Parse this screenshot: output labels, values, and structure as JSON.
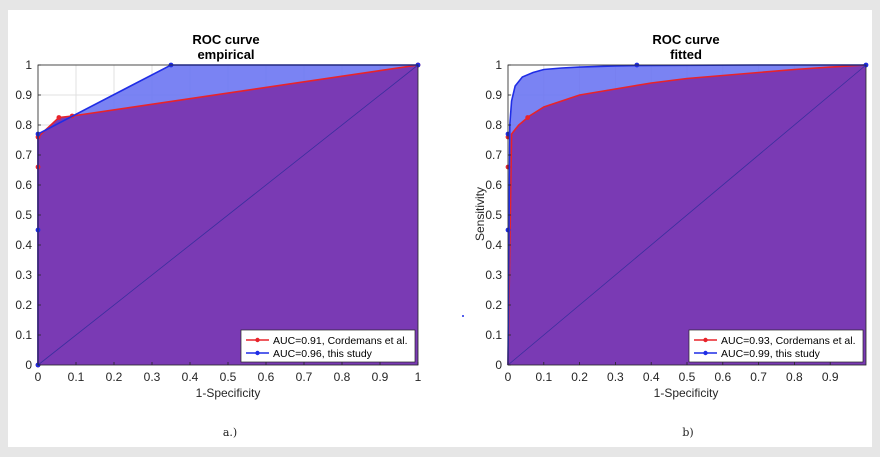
{
  "chart_data": [
    {
      "type": "area",
      "id": "a",
      "title": "ROC curve",
      "subtitle": "empirical",
      "xlabel": "1-Specificity",
      "ylabel": "",
      "caption": "a.)",
      "xlim": [
        0,
        1
      ],
      "ylim": [
        0,
        1
      ],
      "xticks": [
        "0",
        "0.1",
        "0.2",
        "0.3",
        "0.4",
        "0.5",
        "0.6",
        "0.7",
        "0.8",
        "0.9",
        "1"
      ],
      "yticks": [
        "0",
        "0.1",
        "0.2",
        "0.3",
        "0.4",
        "0.5",
        "0.6",
        "0.7",
        "0.8",
        "0.9",
        "1"
      ],
      "grid": true,
      "legend_position": "bottom-right",
      "colors": {
        "fill": "#6b76f2",
        "overlap": "#7a3ab4",
        "red": "#e8232a",
        "blue": "#1f2de6",
        "diag": "#3b2f9e"
      },
      "series": [
        {
          "name": "AUC=0.91, Cordemans et al.",
          "color": "#e8232a",
          "x": [
            0,
            0,
            0,
            0.055,
            0.09,
            1
          ],
          "y": [
            0,
            0.66,
            0.76,
            0.825,
            0.83,
            1
          ]
        },
        {
          "name": "AUC=0.96, this study",
          "color": "#1f2de6",
          "x": [
            0,
            0,
            0,
            0.35,
            1
          ],
          "y": [
            0,
            0.45,
            0.77,
            1,
            1
          ]
        }
      ]
    },
    {
      "type": "area",
      "id": "b",
      "title": "ROC curve",
      "subtitle": "fitted",
      "xlabel": "1-Specificity",
      "ylabel": "Sensitivity",
      "caption": "b)",
      "xlim": [
        0,
        1
      ],
      "ylim": [
        0,
        1
      ],
      "xticks": [
        "0",
        "0.1",
        "0.2",
        "0.3",
        "0.4",
        "0.5",
        "0.6",
        "0.7",
        "0.8",
        "0.9"
      ],
      "yticks": [
        "0",
        "0.1",
        "0.2",
        "0.3",
        "0.4",
        "0.5",
        "0.6",
        "0.7",
        "0.8",
        "0.9",
        "1"
      ],
      "grid": true,
      "legend_position": "bottom-right",
      "colors": {
        "fill": "#6b76f2",
        "overlap": "#7a3ab4",
        "red": "#e8232a",
        "blue": "#1f2de6",
        "diag": "#3b2f9e"
      },
      "series": [
        {
          "name": "AUC=0.93, Cordemans et al.",
          "color": "#e8232a",
          "x": [
            0,
            0.01,
            0.03,
            0.06,
            0.1,
            0.2,
            0.3,
            0.4,
            0.5,
            0.6,
            0.7,
            0.8,
            0.9,
            1
          ],
          "y": [
            0,
            0.77,
            0.8,
            0.83,
            0.86,
            0.9,
            0.92,
            0.94,
            0.955,
            0.965,
            0.975,
            0.985,
            0.993,
            1
          ],
          "markers": [
            [
              0,
              0.66
            ],
            [
              0,
              0.76
            ],
            [
              0.055,
              0.825
            ]
          ]
        },
        {
          "name": "AUC=0.99, this study",
          "color": "#1f2de6",
          "x": [
            0,
            0.005,
            0.01,
            0.02,
            0.04,
            0.07,
            0.1,
            0.15,
            0.2,
            0.3,
            0.36,
            0.5,
            0.7,
            1
          ],
          "y": [
            0,
            0.8,
            0.88,
            0.93,
            0.96,
            0.975,
            0.985,
            0.99,
            0.993,
            0.997,
            0.998,
            0.999,
            1,
            1
          ],
          "markers": [
            [
              0,
              0.45
            ],
            [
              0,
              0.77
            ],
            [
              0.36,
              1
            ],
            [
              1,
              1
            ]
          ]
        }
      ]
    }
  ]
}
